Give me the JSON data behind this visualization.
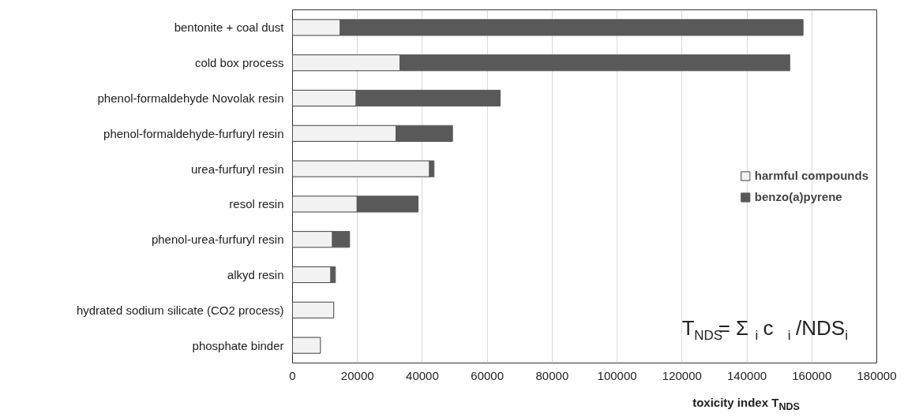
{
  "chart_data": {
    "type": "bar",
    "orientation": "horizontal",
    "stacked": true,
    "categories": [
      "bentonite + coal dust",
      "cold box process",
      "phenol-formaldehyde Novolak resin",
      "phenol-formaldehyde-furfuryl resin",
      "urea-furfuryl resin",
      "resol resin",
      "phenol-urea-furfuryl resin",
      "alkyd resin",
      "hydrated sodium silicate (CO2 process)",
      "phosphate binder"
    ],
    "series": [
      {
        "name": "harmful compounds",
        "color": "#f2f2f2",
        "values": [
          14700,
          33100,
          19600,
          31900,
          42200,
          19900,
          12300,
          11800,
          12700,
          8600
        ]
      },
      {
        "name": "benzo(a)pyrene",
        "color": "#595959",
        "values": [
          142600,
          120100,
          44400,
          17400,
          1400,
          18800,
          5300,
          1400,
          0,
          0
        ]
      }
    ],
    "xlabel": "toxicity index T$_{NDS}$",
    "xlim": [
      0,
      180000
    ],
    "xticks": [
      0,
      20000,
      40000,
      60000,
      80000,
      100000,
      120000,
      140000,
      160000,
      180000
    ],
    "grid": "x",
    "legend": "right",
    "annotations": [
      "T$_{NDS}$= Σ$_{i}$ c$_{i}$/NDS$_{i}$"
    ]
  }
}
